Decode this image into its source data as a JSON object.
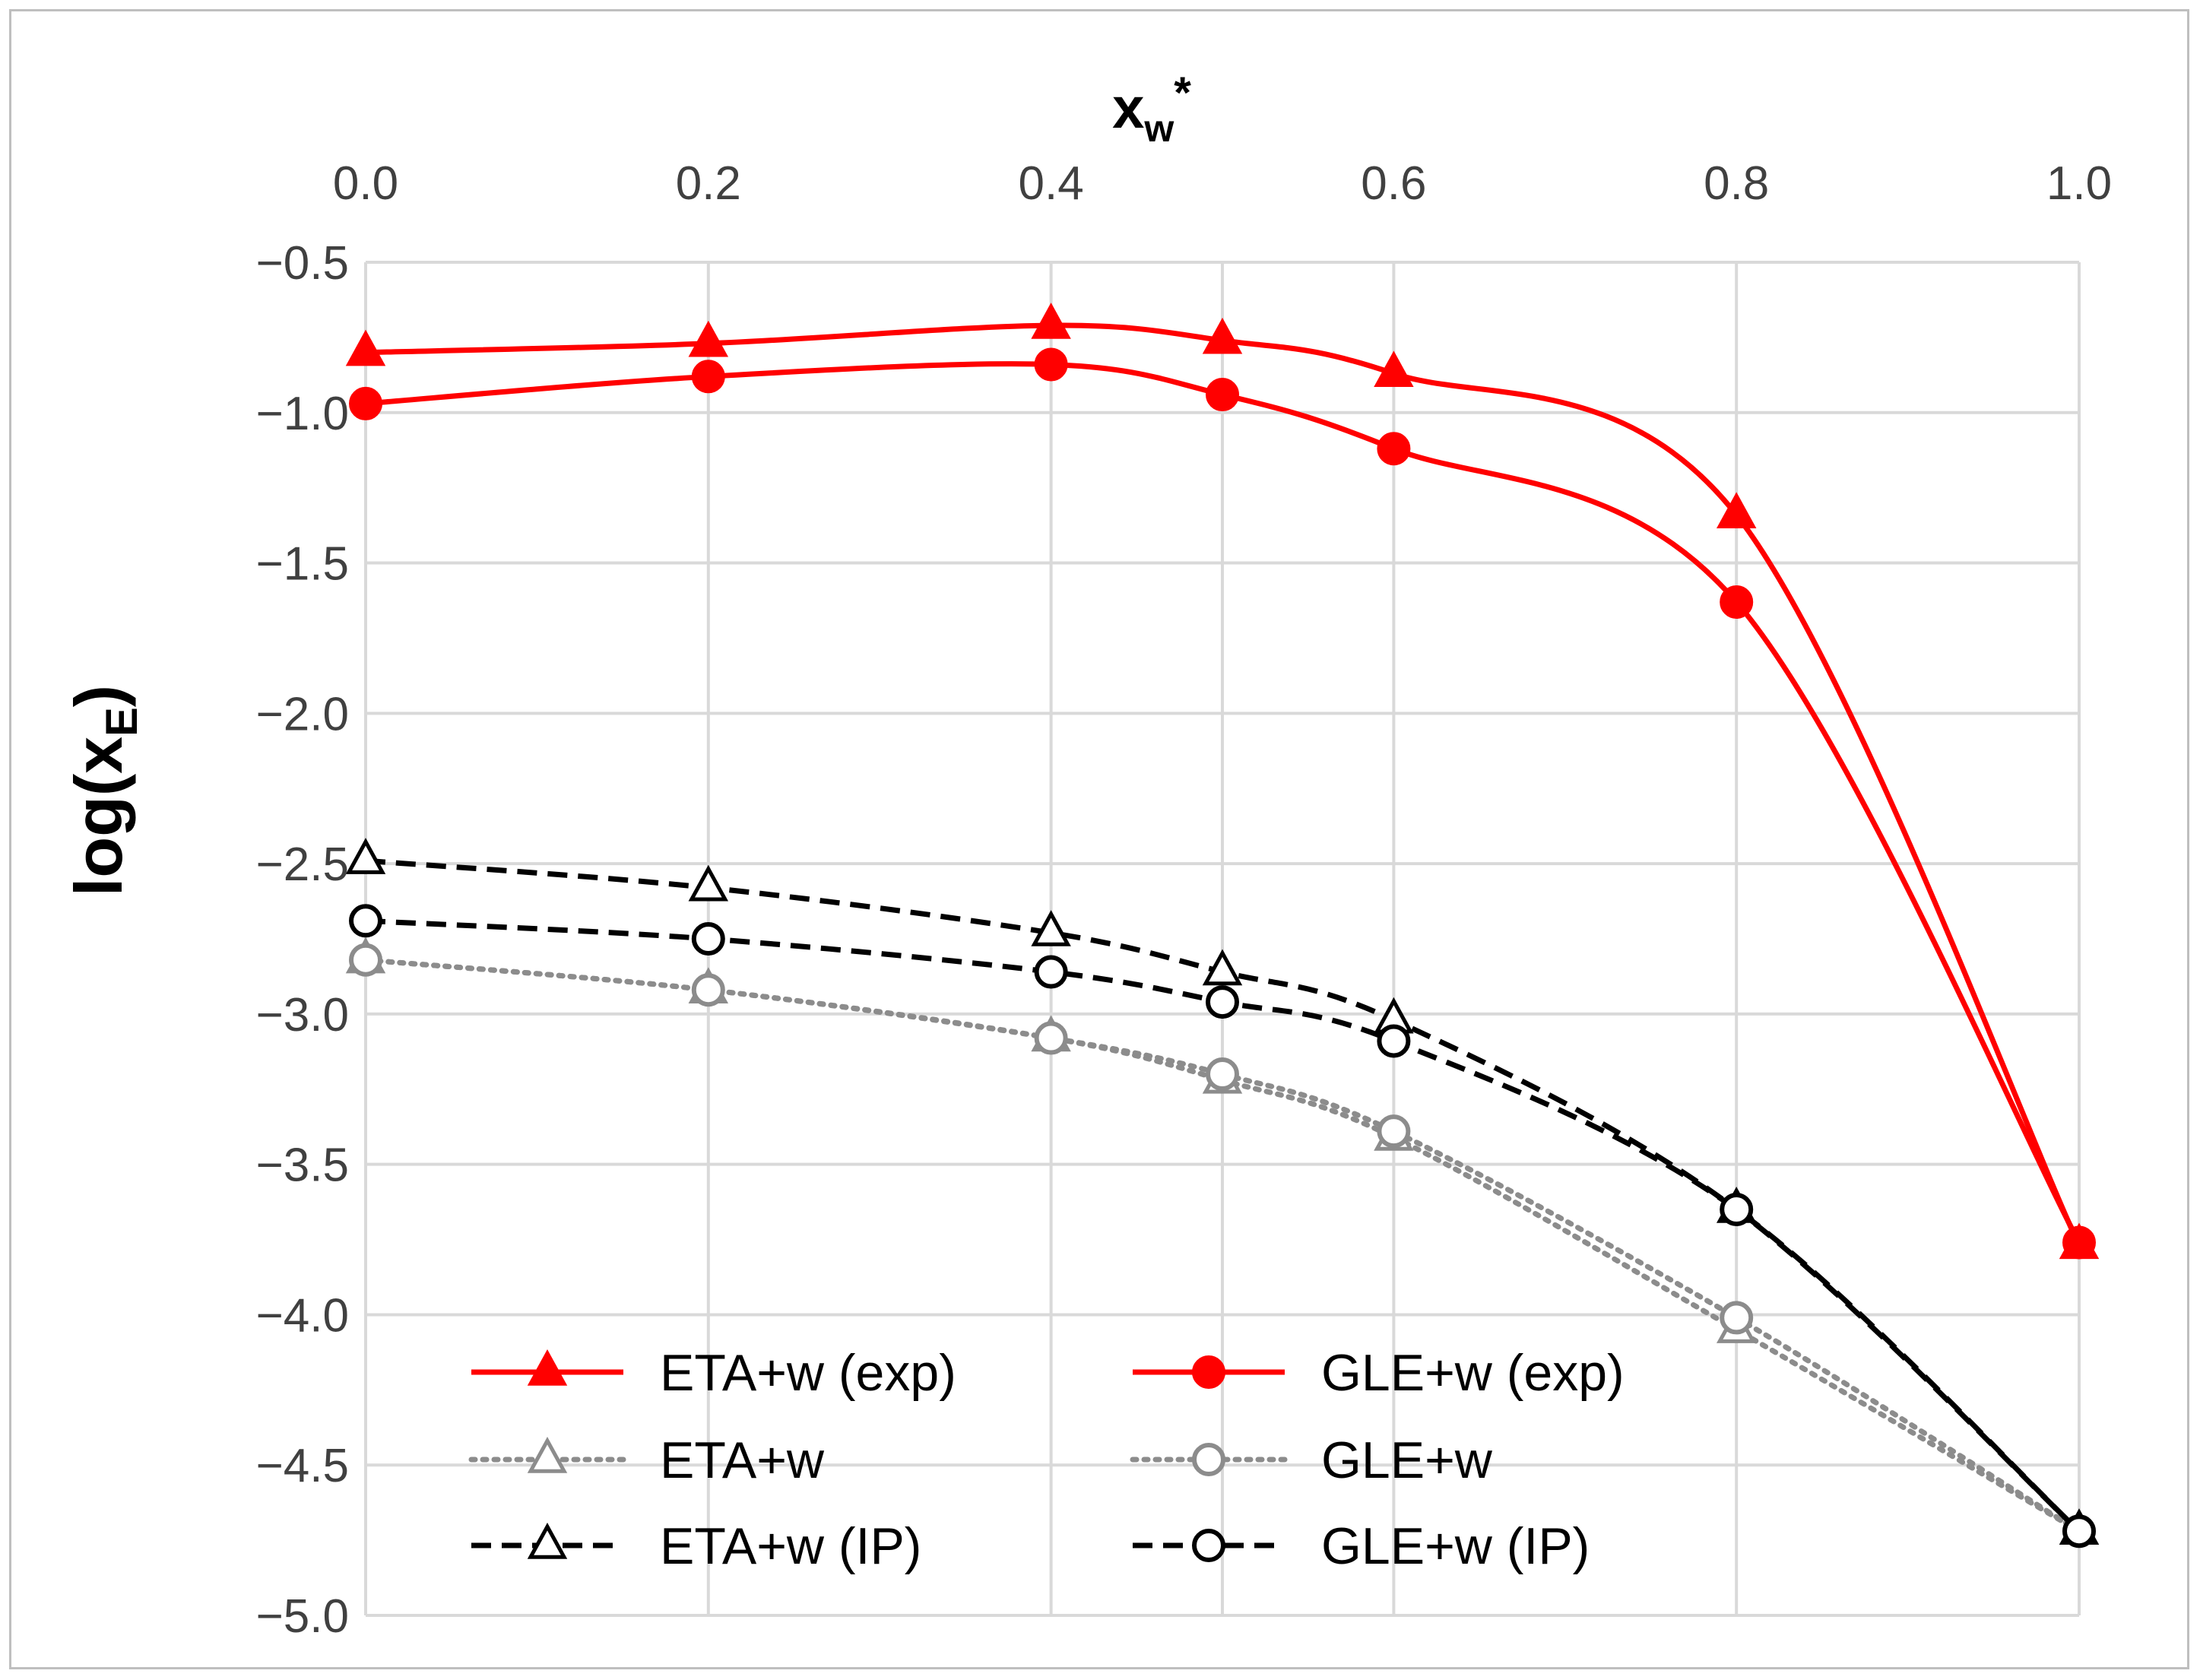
{
  "chart_data": {
    "type": "line",
    "title": "",
    "xlabel": "xw*",
    "xlabel_main": "x",
    "xlabel_sub": "w",
    "xlabel_sup": "*",
    "ylabel": "log(xE)",
    "ylabel_main": "log(x",
    "ylabel_sub": "E",
    "ylabel_close": ")",
    "xlim": [
      0.0,
      1.0
    ],
    "ylim": [
      -5.0,
      -0.5
    ],
    "x_ticks": [
      0.0,
      0.2,
      0.4,
      0.6,
      0.8,
      1.0
    ],
    "x_tick_labels": [
      "0.0",
      "0.2",
      "0.4",
      "0.6",
      "0.8",
      "1.0"
    ],
    "y_ticks": [
      -0.5,
      -1.0,
      -1.5,
      -2.0,
      -2.5,
      -3.0,
      -3.5,
      -4.0,
      -4.5,
      -5.0
    ],
    "y_tick_labels": [
      "−0.5",
      "−1.0",
      "−1.5",
      "−2.0",
      "−2.5",
      "−3.0",
      "−3.5",
      "−4.0",
      "−4.5",
      "−5.0"
    ],
    "x_axis_position": "top",
    "grid": true,
    "legend_position": "bottom-center",
    "x": [
      0.0,
      0.2,
      0.4,
      0.5,
      0.6,
      0.8,
      1.0
    ],
    "series": [
      {
        "name": "ETA+w (exp)",
        "color": "#ff0000",
        "dash": "solid",
        "marker": "triangle",
        "fill": "filled",
        "values": [
          -0.8,
          -0.77,
          -0.71,
          -0.76,
          -0.87,
          -1.34,
          -3.77
        ]
      },
      {
        "name": "GLE+w (exp)",
        "color": "#ff0000",
        "dash": "solid",
        "marker": "circle",
        "fill": "filled",
        "values": [
          -0.97,
          -0.88,
          -0.84,
          -0.94,
          -1.12,
          -1.63,
          -3.76
        ]
      },
      {
        "name": "ETA+w",
        "color": "#8c8c8c",
        "dash": "dotted",
        "marker": "triangle",
        "fill": "open",
        "values": [
          -2.82,
          -2.92,
          -3.08,
          -3.22,
          -3.41,
          -4.05,
          -4.72
        ]
      },
      {
        "name": "GLE+w",
        "color": "#8c8c8c",
        "dash": "dotted",
        "marker": "circle",
        "fill": "open",
        "values": [
          -2.82,
          -2.92,
          -3.08,
          -3.2,
          -3.39,
          -4.01,
          -4.72
        ]
      },
      {
        "name": "ETA+w (IP)",
        "color": "#000000",
        "dash": "dashed",
        "marker": "triangle",
        "fill": "open",
        "values": [
          -2.49,
          -2.58,
          -2.73,
          -2.86,
          -3.02,
          -3.65,
          -4.72
        ]
      },
      {
        "name": "GLE+w  (IP)",
        "color": "#000000",
        "dash": "dashed",
        "marker": "circle",
        "fill": "open",
        "values": [
          -2.69,
          -2.75,
          -2.86,
          -2.96,
          -3.09,
          -3.65,
          -4.72
        ]
      }
    ]
  }
}
